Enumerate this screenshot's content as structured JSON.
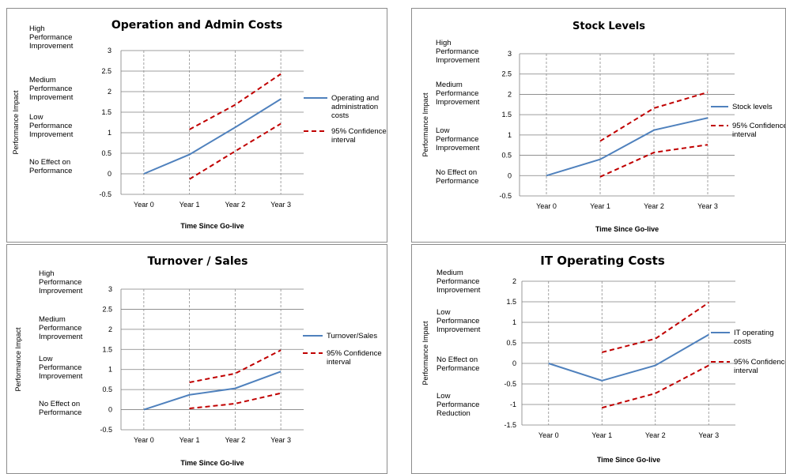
{
  "chart_data": [
    {
      "type": "line",
      "title": "Operation and Admin Costs",
      "xlabel": "Time Since Go-live",
      "ylabel": "Performance Impact",
      "categories": [
        "Year 0",
        "Year 1",
        "Year 2",
        "Year 3"
      ],
      "ylim": [
        -0.5,
        3
      ],
      "yticks": [
        -0.5,
        0,
        0.5,
        1,
        1.5,
        2,
        2.5,
        3
      ],
      "category_labels": [
        {
          "text": [
            "High",
            "Performance",
            "Improvement"
          ],
          "y": 3
        },
        {
          "text": [
            "Medium",
            "Performance",
            "Improvement"
          ],
          "y": 2
        },
        {
          "text": [
            "Low",
            "Performance",
            "Improvement"
          ],
          "y": 1.05
        },
        {
          "text": [
            "No Effect on",
            "Performance"
          ],
          "y": 0
        }
      ],
      "series": [
        {
          "name": "Operating and administration costs",
          "legend_lines": [
            "Operating and",
            "administration",
            "costs"
          ],
          "style": "solid",
          "values": [
            0,
            0.47,
            1.13,
            1.82
          ]
        },
        {
          "name": "95% Confidence interval",
          "legend_lines": [
            "95% Confidence",
            "interval"
          ],
          "style": "dashed",
          "values": [
            null,
            1.08,
            1.68,
            2.43
          ]
        },
        {
          "name": "",
          "style": "dashed",
          "values": [
            null,
            -0.13,
            0.55,
            1.22
          ]
        }
      ],
      "grid": true,
      "legend": "right"
    },
    {
      "type": "line",
      "title": "Stock Levels",
      "xlabel": "Time Since Go-live",
      "ylabel": "Performance Impact",
      "categories": [
        "Year 0",
        "Year 1",
        "Year 2",
        "Year 3"
      ],
      "ylim": [
        -0.5,
        3
      ],
      "yticks": [
        -0.5,
        0,
        0.5,
        1,
        1.5,
        2,
        2.5,
        3
      ],
      "category_labels": [
        {
          "text": [
            "High",
            "Performance",
            "Improvement"
          ],
          "y": 3
        },
        {
          "text": [
            "Medium",
            "Performance",
            "Improvement"
          ],
          "y": 1.9
        },
        {
          "text": [
            "Low",
            "Performance",
            "Improvement"
          ],
          "y": 0.8
        },
        {
          "text": [
            "No Effect on",
            "Performance"
          ],
          "y": -0.15
        }
      ],
      "series": [
        {
          "name": "Stock levels",
          "legend_lines": [
            "Stock levels"
          ],
          "style": "solid",
          "values": [
            0,
            0.4,
            1.12,
            1.42
          ]
        },
        {
          "name": "95% Confidence interval",
          "legend_lines": [
            "95% Confidence",
            "interval"
          ],
          "style": "dashed",
          "values": [
            null,
            0.85,
            1.66,
            2.05
          ]
        },
        {
          "name": "",
          "style": "dashed",
          "values": [
            null,
            -0.03,
            0.57,
            0.76
          ]
        }
      ],
      "grid": true,
      "legend": "right"
    },
    {
      "type": "line",
      "title": "Turnover / Sales",
      "xlabel": "Time Since Go-live",
      "ylabel": "Performance Impact",
      "categories": [
        "Year 0",
        "Year 1",
        "Year 2",
        "Year 3"
      ],
      "ylim": [
        -0.5,
        3
      ],
      "yticks": [
        -0.5,
        0,
        0.5,
        1,
        1.5,
        2,
        2.5,
        3
      ],
      "category_labels": [
        {
          "text": [
            "High",
            "Performance",
            "Improvement"
          ],
          "y": 3
        },
        {
          "text": [
            "Medium",
            "Performance",
            "Improvement"
          ],
          "y": 2
        },
        {
          "text": [
            "Low",
            "Performance",
            "Improvement"
          ],
          "y": 1
        },
        {
          "text": [
            "No Effect on",
            "Performance"
          ],
          "y": 0
        }
      ],
      "series": [
        {
          "name": "Turnover/Sales",
          "legend_lines": [
            "Turnover/Sales"
          ],
          "style": "solid",
          "values": [
            0,
            0.37,
            0.53,
            0.95
          ]
        },
        {
          "name": "95% Confidence interval",
          "legend_lines": [
            "95% Confidence",
            "interval"
          ],
          "style": "dashed",
          "values": [
            null,
            0.68,
            0.9,
            1.48
          ]
        },
        {
          "name": "",
          "style": "dashed",
          "values": [
            null,
            0.03,
            0.15,
            0.41
          ]
        }
      ],
      "grid": true,
      "legend": "right"
    },
    {
      "type": "line",
      "title": "IT Operating Costs",
      "xlabel": "Time Since Go-live",
      "ylabel": "Performance Impact",
      "categories": [
        "Year 0",
        "Year 1",
        "Year 2",
        "Year 3"
      ],
      "ylim": [
        -1.5,
        2
      ],
      "yticks": [
        -1.5,
        -1,
        -0.5,
        0,
        0.5,
        1,
        1.5,
        2
      ],
      "category_labels": [
        {
          "text": [
            "Medium",
            "Performance",
            "Improvement"
          ],
          "y": 2
        },
        {
          "text": [
            "Low",
            "Performance",
            "Improvement"
          ],
          "y": 1
        },
        {
          "text": [
            "No Effect on",
            "Performance"
          ],
          "y": 0
        },
        {
          "text": [
            "Low",
            "Performance",
            "Reduction"
          ],
          "y": -1
        }
      ],
      "series": [
        {
          "name": "IT operating costs",
          "legend_lines": [
            "IT operating",
            "costs"
          ],
          "style": "solid",
          "values": [
            0,
            -0.42,
            -0.05,
            0.7
          ]
        },
        {
          "name": "95% Confidence interval",
          "legend_lines": [
            "95% Confidence",
            "interval"
          ],
          "style": "dashed",
          "values": [
            null,
            0.27,
            0.6,
            1.48
          ]
        },
        {
          "name": "",
          "style": "dashed",
          "values": [
            null,
            -1.08,
            -0.73,
            -0.05
          ]
        }
      ],
      "grid": true,
      "legend": "right"
    }
  ],
  "colors": {
    "line": "#4f81bd",
    "ci": "#c00000",
    "grid": "#7f7f7f",
    "vgrid": "#8c8c8c"
  }
}
